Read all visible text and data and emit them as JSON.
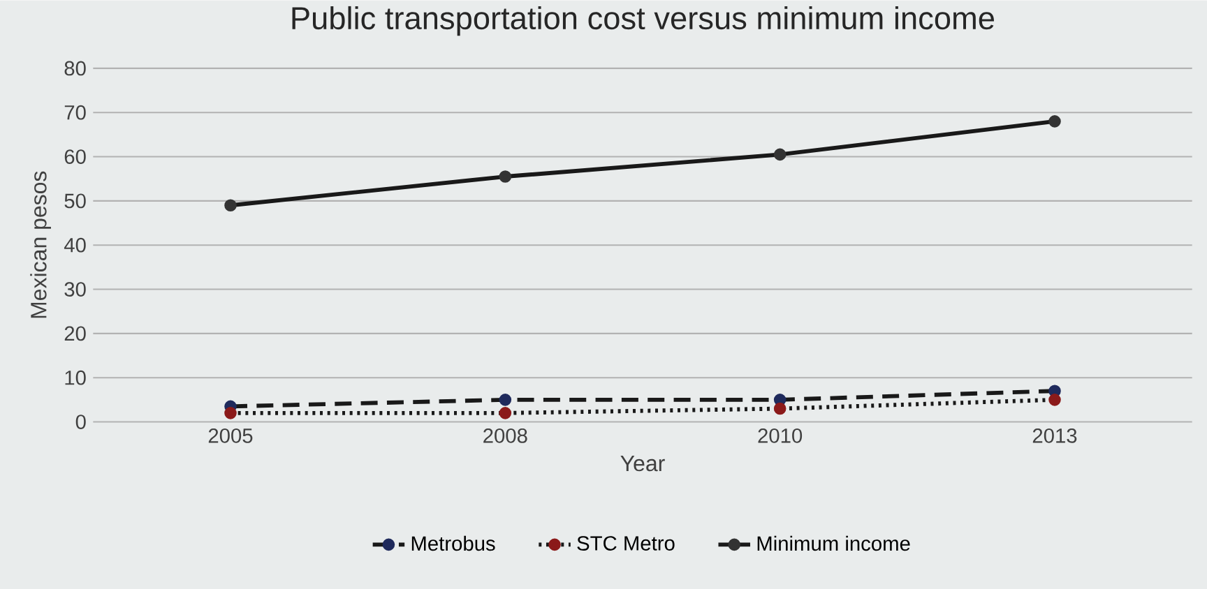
{
  "chart_data": {
    "type": "line",
    "title": "Public transportation cost versus minimum income",
    "xlabel": "Year",
    "ylabel": "Mexican pesos",
    "categories": [
      "2005",
      "2008",
      "2010",
      "2013"
    ],
    "series": [
      {
        "name": "Metrobus",
        "color": "#1f2a5c",
        "values": [
          3.5,
          5,
          5,
          7
        ],
        "line_style": "dashed"
      },
      {
        "name": "STC Metro",
        "color": "#8b1a1a",
        "values": [
          2,
          2,
          3,
          5
        ],
        "line_style": "dotted"
      },
      {
        "name": "Minimum income",
        "color": "#333333",
        "values": [
          49,
          55.5,
          60.5,
          68
        ],
        "line_style": "solid"
      }
    ],
    "ylim": [
      0,
      80
    ],
    "yticks": [
      0,
      10,
      20,
      30,
      40,
      50,
      60,
      70,
      80
    ],
    "grid": "y",
    "legend": "bottom",
    "marker": "circle"
  }
}
